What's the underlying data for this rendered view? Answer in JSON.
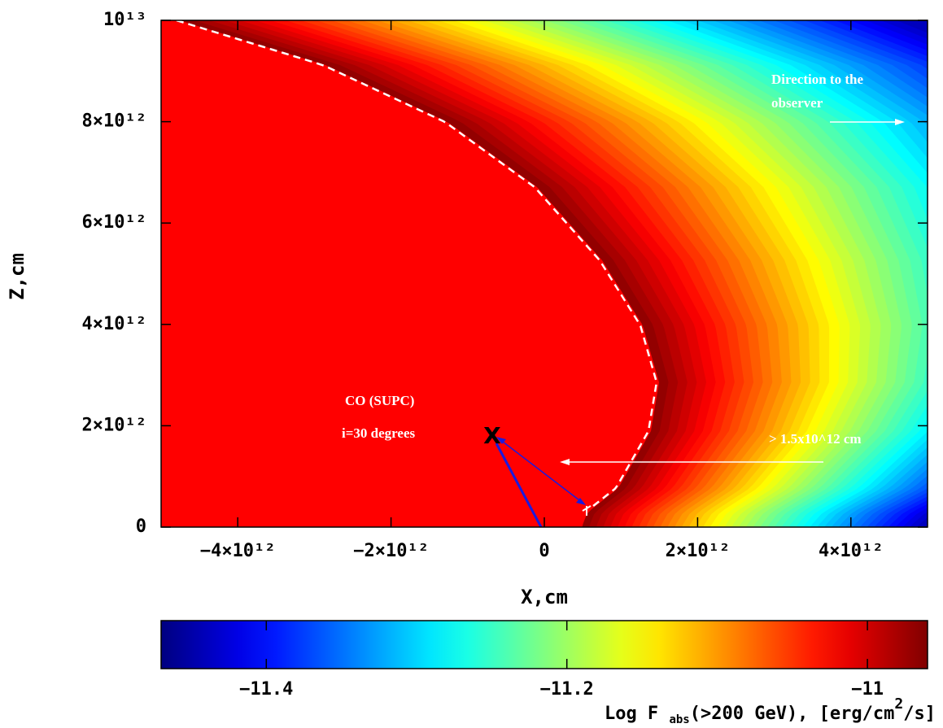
{
  "chart_data": {
    "type": "heatmap",
    "xlabel": "X,cm",
    "ylabel": "Z,cm",
    "xlim": [
      -5000000000000.0,
      5000000000000.0
    ],
    "ylim": [
      0,
      10000000000000.0
    ],
    "xticks": [
      {
        "value": -4000000000000.0,
        "label": "−4×10¹²"
      },
      {
        "value": -2000000000000.0,
        "label": "−2×10¹²"
      },
      0,
      {
        "value": 2000000000000.0,
        "label": "2×10¹²"
      },
      {
        "value": 4000000000000.0,
        "label": "4×10¹²"
      }
    ],
    "yticks": [
      0,
      {
        "value": 2000000000000.0,
        "label": "2×10¹²"
      },
      {
        "value": 4000000000000.0,
        "label": "4×10¹²"
      },
      {
        "value": 6000000000000.0,
        "label": "6×10¹²"
      },
      {
        "value": 8000000000000.0,
        "label": "8×10¹²"
      },
      {
        "value": 10000000000000.0,
        "label": "10¹³"
      }
    ],
    "colorbar": {
      "lim": [
        -11.47,
        -10.96
      ],
      "ticks": [
        {
          "value": -11.4,
          "label": "−11.4"
        },
        {
          "value": -11.2,
          "label": "−11.2"
        },
        {
          "value": -11,
          "label": "−11"
        }
      ],
      "label": {
        "main": "Log F ",
        "subscript": "abs",
        "rest": "(>200 GeV), [erg/cm",
        "superscript": "2",
        "end": "/s]"
      }
    },
    "annotations": {
      "observer": [
        "Direction to the",
        "observer"
      ],
      "object": "CO (SUPC)",
      "inclination": "i=30 degrees",
      "distance": "> 1.5x10^12 cm"
    },
    "marker": {
      "label": "X",
      "x": -680000000000.0,
      "y": 1780000000000.0
    }
  }
}
